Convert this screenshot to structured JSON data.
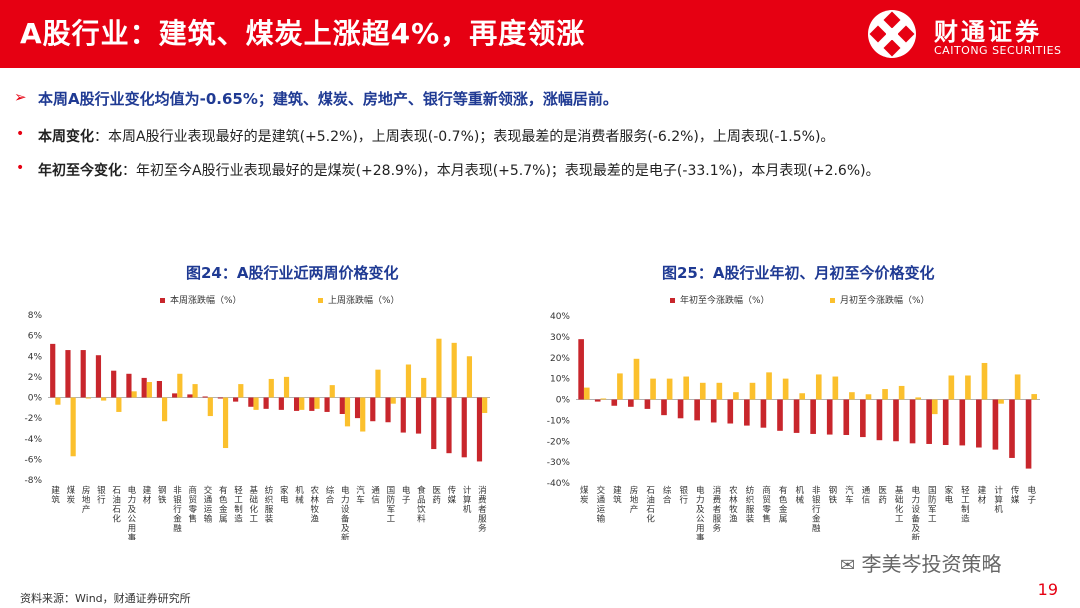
{
  "header": {
    "title": "A股行业：建筑、煤炭上涨超4%，再度领涨",
    "logo_cn": "财通证券",
    "logo_en": "CAITONG SECURITIES"
  },
  "summary": {
    "line1": "本周A股行业变化均值为-0.65%；建筑、煤炭、房地产、银行等重新领涨，涨幅居前。",
    "line2_label": "本周变化",
    "line2_text": "：本周A股行业表现最好的是建筑(+5.2%)，上周表现(-0.7%)；表现最差的是消费者服务(-6.2%)，上周表现(-1.5%)。",
    "line3_label": "年初至今变化",
    "line3_text": "：年初至今A股行业表现最好的是煤炭(+28.9%)，本月表现(+5.7%)；表现最差的是电子(-33.1%)，本月表现(+2.6%)。"
  },
  "footer": {
    "source": "资料来源：Wind，财通证券研究所",
    "wechat": "李美岑投资策略",
    "page": "19"
  },
  "colors": {
    "red": "#c8262c",
    "yellow": "#fbc02d",
    "brand": "#e60012",
    "title_blue": "#1f3a93"
  },
  "chart_data": [
    {
      "type": "bar",
      "title": "图24：A股行业近两周价格变化",
      "categories": [
        "建筑",
        "煤炭",
        "房地产",
        "银行",
        "石油石化",
        "电力及公用事业",
        "建材",
        "钢铁",
        "非银行金融",
        "商贸零售",
        "交通运输",
        "有色金属",
        "轻工制造",
        "基础化工",
        "纺织服装",
        "家电",
        "机械",
        "农林牧渔",
        "综合",
        "电力设备及新能源",
        "汽车",
        "通信",
        "国防军工",
        "电子",
        "食品饮料",
        "医药",
        "传媒",
        "计算机",
        "消费者服务"
      ],
      "series": [
        {
          "name": "本周涨跌幅（%）",
          "values": [
            5.2,
            4.6,
            4.6,
            4.1,
            2.6,
            2.3,
            1.9,
            1.6,
            0.4,
            0.3,
            0.1,
            -0.1,
            -0.4,
            -0.9,
            -1.1,
            -1.2,
            -1.3,
            -1.3,
            -1.4,
            -1.6,
            -2.0,
            -2.3,
            -2.4,
            -3.4,
            -3.5,
            -5.0,
            -5.4,
            -5.8,
            -6.2
          ]
        },
        {
          "name": "上周涨跌幅（%）",
          "values": [
            -0.7,
            -5.7,
            -0.1,
            -0.3,
            -1.4,
            0.6,
            1.5,
            -2.3,
            2.3,
            1.3,
            -1.8,
            -4.9,
            1.3,
            -1.2,
            1.8,
            2.0,
            -1.2,
            -1.1,
            1.2,
            -2.8,
            -3.3,
            2.7,
            -0.6,
            3.2,
            1.9,
            5.7,
            5.3,
            4.0,
            -1.5
          ]
        }
      ],
      "ylim": [
        -8,
        8
      ],
      "ticks": [
        "8%",
        "6%",
        "4%",
        "2%",
        "0%",
        "-2%",
        "-4%",
        "-6%",
        "-8%"
      ]
    },
    {
      "type": "bar",
      "title": "图25：A股行业年初、月初至今价格变化",
      "categories": [
        "煤炭",
        "交通运输",
        "建筑",
        "房地产",
        "石油石化",
        "综合",
        "银行",
        "电力及公用事业",
        "消费者服务",
        "农林牧渔",
        "纺织服装",
        "商贸零售",
        "有色金属",
        "机械",
        "非银行金融",
        "钢铁",
        "汽车",
        "通信",
        "医药",
        "基础化工",
        "电力设备及新能源",
        "国防军工",
        "家电",
        "轻工制造",
        "建材",
        "计算机",
        "传媒",
        "电子"
      ],
      "series": [
        {
          "name": "年初至今涨跌幅（%）",
          "values": [
            28.9,
            -1.0,
            -3.0,
            -3.5,
            -4.5,
            -7.5,
            -9.0,
            -10.0,
            -11.0,
            -11.5,
            -12.5,
            -13.5,
            -15.0,
            -16.0,
            -16.5,
            -16.8,
            -17.0,
            -18.0,
            -19.5,
            -20.0,
            -21.0,
            -21.3,
            -21.8,
            -22.0,
            -23.0,
            -24.0,
            -28.0,
            -33.1
          ]
        },
        {
          "name": "月初至今涨跌幅（%）",
          "values": [
            5.7,
            0.5,
            12.5,
            19.5,
            10.0,
            10.0,
            11.0,
            8.0,
            8.0,
            3.5,
            8.0,
            13.0,
            10.0,
            3.0,
            12.0,
            11.0,
            3.5,
            2.5,
            5.0,
            6.5,
            1.0,
            -7.0,
            11.5,
            11.5,
            17.5,
            -2.0,
            12.0,
            2.6
          ]
        }
      ],
      "ylim": [
        -40,
        40
      ],
      "ticks": [
        "40%",
        "30%",
        "20%",
        "10%",
        "0%",
        "-10%",
        "-20%",
        "-30%",
        "-40%"
      ]
    }
  ]
}
